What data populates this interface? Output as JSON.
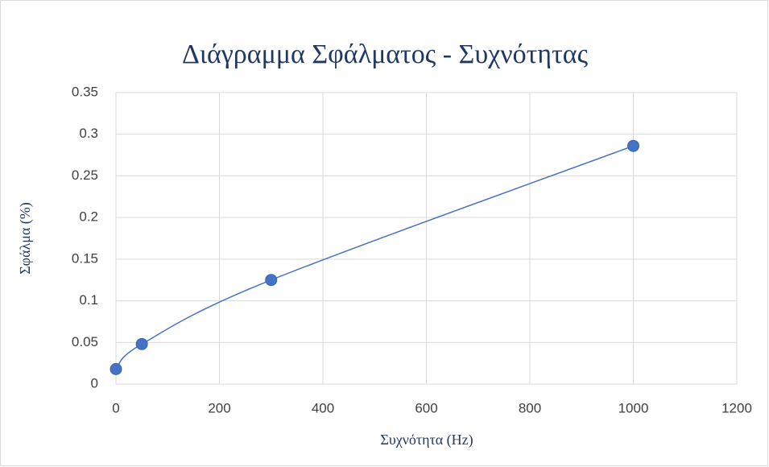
{
  "chart_data": {
    "type": "scatter",
    "title": "Διάγραμμα Σφάλματος - Συχνότητας",
    "x_label": "Συχνότητα (Hz)",
    "y_label": "Σφάλμα (%)",
    "series": [
      {
        "x": [
          0,
          50,
          300,
          1000
        ],
        "values": [
          0.018,
          0.048,
          0.125,
          0.286
        ],
        "color": "#4472c4",
        "smooth": true
      }
    ],
    "xlim": [
      0,
      1200
    ],
    "xticks": [
      0,
      200,
      400,
      600,
      800,
      1000,
      1200
    ],
    "ylim": [
      0,
      0.35
    ],
    "yticks": [
      0,
      0.05,
      0.1,
      0.15,
      0.2,
      0.25,
      0.3,
      0.35
    ],
    "grid": true
  }
}
